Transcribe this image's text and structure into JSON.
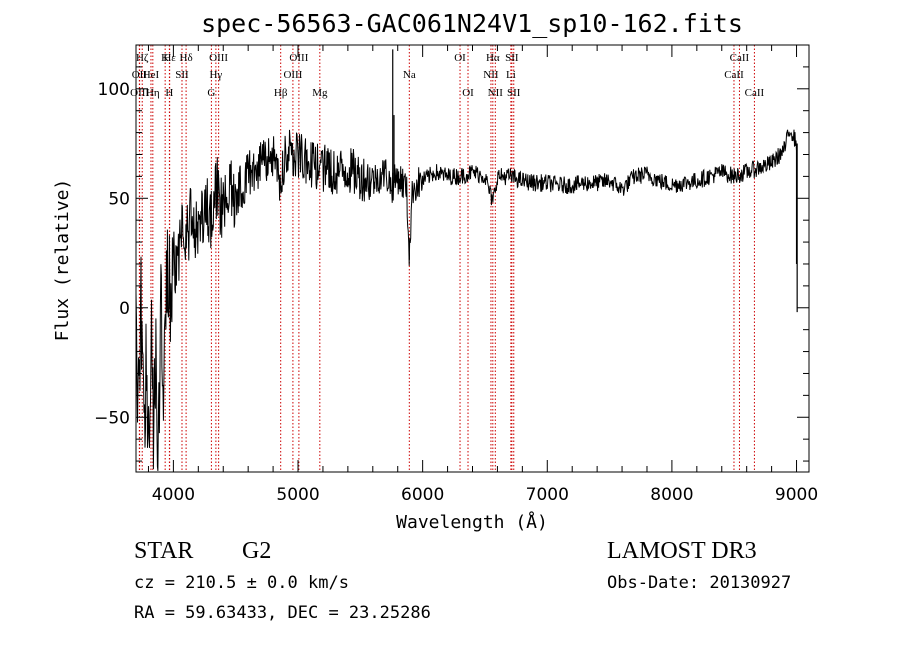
{
  "chart_data": {
    "type": "line",
    "title": "spec-56563-GAC061N24V1_sp10-162.fits",
    "xlabel": "Wavelength (Å)",
    "ylabel": "Flux (relative)",
    "xlim": [
      3700,
      9100
    ],
    "ylim": [
      -75,
      120
    ],
    "x_ticks": [
      4000,
      5000,
      6000,
      7000,
      8000,
      9000
    ],
    "x_tick_labels": [
      "4000",
      "5000",
      "6000",
      "7000",
      "8000",
      "9000"
    ],
    "y_ticks": [
      -50,
      0,
      50,
      100
    ],
    "y_tick_labels": [
      "−50",
      "0",
      "50",
      "100"
    ],
    "grid": false,
    "legend": "none",
    "line_color": "#000000",
    "marker_color": "#cc0000",
    "spectrum_anchors": [
      [
        3700,
        -5
      ],
      [
        3720,
        -45
      ],
      [
        3740,
        5
      ],
      [
        3760,
        -60
      ],
      [
        3780,
        -20
      ],
      [
        3800,
        -65
      ],
      [
        3820,
        -10
      ],
      [
        3840,
        -55
      ],
      [
        3860,
        -15
      ],
      [
        3880,
        -68
      ],
      [
        3900,
        0
      ],
      [
        3920,
        -30
      ],
      [
        3950,
        15
      ],
      [
        3980,
        5
      ],
      [
        4000,
        30
      ],
      [
        4030,
        15
      ],
      [
        4060,
        40
      ],
      [
        4100,
        28
      ],
      [
        4150,
        45
      ],
      [
        4200,
        32
      ],
      [
        4250,
        48
      ],
      [
        4300,
        38
      ],
      [
        4350,
        55
      ],
      [
        4400,
        42
      ],
      [
        4450,
        58
      ],
      [
        4500,
        50
      ],
      [
        4600,
        62
      ],
      [
        4700,
        65
      ],
      [
        4800,
        68
      ],
      [
        4860,
        58
      ],
      [
        4900,
        72
      ],
      [
        5000,
        70
      ],
      [
        5100,
        66
      ],
      [
        5200,
        64
      ],
      [
        5300,
        62
      ],
      [
        5400,
        63
      ],
      [
        5500,
        60
      ],
      [
        5600,
        58
      ],
      [
        5700,
        62
      ],
      [
        5750,
        55
      ],
      [
        5800,
        60
      ],
      [
        5870,
        55
      ],
      [
        5893,
        25
      ],
      [
        5920,
        55
      ],
      [
        6000,
        58
      ],
      [
        6100,
        62
      ],
      [
        6200,
        60
      ],
      [
        6300,
        60
      ],
      [
        6400,
        62
      ],
      [
        6500,
        60
      ],
      [
        6563,
        48
      ],
      [
        6600,
        60
      ],
      [
        6700,
        60
      ],
      [
        6800,
        58
      ],
      [
        6900,
        57
      ],
      [
        7000,
        57
      ],
      [
        7100,
        56
      ],
      [
        7200,
        56
      ],
      [
        7300,
        57
      ],
      [
        7400,
        57
      ],
      [
        7500,
        58
      ],
      [
        7600,
        54
      ],
      [
        7700,
        60
      ],
      [
        7800,
        61
      ],
      [
        7900,
        58
      ],
      [
        8000,
        56
      ],
      [
        8100,
        57
      ],
      [
        8200,
        58
      ],
      [
        8300,
        60
      ],
      [
        8400,
        62
      ],
      [
        8500,
        60
      ],
      [
        8600,
        62
      ],
      [
        8700,
        64
      ],
      [
        8800,
        66
      ],
      [
        8900,
        72
      ],
      [
        8950,
        82
      ],
      [
        9000,
        75
      ]
    ],
    "spikes": [
      {
        "x": 5760,
        "y": 118
      },
      {
        "x": 5770,
        "y": 88
      },
      {
        "x": 5893,
        "y": 22
      },
      {
        "x": 9000,
        "y": 20
      },
      {
        "x": 9005,
        "y": -2
      }
    ],
    "lines": [
      {
        "name": "Hε",
        "x": 3970,
        "row": 1,
        "anchor": "middle"
      },
      {
        "name": "OII",
        "x": 3727,
        "row": 2,
        "anchor": "middle"
      },
      {
        "name": "OIII",
        "x": 3729,
        "row": 3,
        "anchor": "middle"
      },
      {
        "name": "Hζ",
        "x": 3750,
        "row": 1,
        "anchor": "middle"
      },
      {
        "name": "HeI",
        "x": 3820,
        "row": 2,
        "anchor": "middle"
      },
      {
        "name": "Hη",
        "x": 3835,
        "row": 3,
        "anchor": "middle"
      },
      {
        "name": "K",
        "x": 3934,
        "row": 1,
        "anchor": "middle"
      },
      {
        "name": "SII",
        "x": 4069,
        "row": 2,
        "anchor": "middle"
      },
      {
        "name": "H",
        "x": 3968,
        "row": 3,
        "anchor": "middle"
      },
      {
        "name": "Hδ",
        "x": 4102,
        "row": 1,
        "anchor": "middle"
      },
      {
        "name": "OIII",
        "x": 4363,
        "row": 1,
        "anchor": "middle"
      },
      {
        "name": "Hγ",
        "x": 4341,
        "row": 2,
        "anchor": "middle"
      },
      {
        "name": "G",
        "x": 4305,
        "row": 3,
        "anchor": "middle"
      },
      {
        "name": "OIII",
        "x": 5007,
        "row": 1,
        "anchor": "middle"
      },
      {
        "name": "OIII",
        "x": 4959,
        "row": 2,
        "anchor": "middle"
      },
      {
        "name": "Hβ",
        "x": 4861,
        "row": 3,
        "anchor": "middle"
      },
      {
        "name": "Mg",
        "x": 5175,
        "row": 3,
        "anchor": "middle"
      },
      {
        "name": "Na",
        "x": 5893,
        "row": 2,
        "anchor": "middle"
      },
      {
        "name": "OI",
        "x": 6300,
        "row": 1,
        "anchor": "middle"
      },
      {
        "name": "OI",
        "x": 6364,
        "row": 3,
        "anchor": "middle"
      },
      {
        "name": "Hα",
        "x": 6563,
        "row": 1,
        "anchor": "middle"
      },
      {
        "name": "SII",
        "x": 6716,
        "row": 1,
        "anchor": "middle"
      },
      {
        "name": "NII",
        "x": 6548,
        "row": 2,
        "anchor": "middle"
      },
      {
        "name": "Li",
        "x": 6708,
        "row": 2,
        "anchor": "middle"
      },
      {
        "name": "NII",
        "x": 6583,
        "row": 3,
        "anchor": "middle"
      },
      {
        "name": "SII",
        "x": 6731,
        "row": 3,
        "anchor": "middle"
      },
      {
        "name": "CaII",
        "x": 8542,
        "row": 1,
        "anchor": "middle"
      },
      {
        "name": "CaII",
        "x": 8498,
        "row": 2,
        "anchor": "middle"
      },
      {
        "name": "CaII",
        "x": 8662,
        "row": 3,
        "anchor": "middle"
      }
    ]
  },
  "info": {
    "object_class": "STAR",
    "subclass": "G2",
    "survey": "LAMOST DR3",
    "cz_line": "cz = 210.5 ± 0.0 km/s",
    "obs_date_line": "Obs-Date: 20130927",
    "radec_line": "RA =  59.63433, DEC =  23.25286"
  }
}
